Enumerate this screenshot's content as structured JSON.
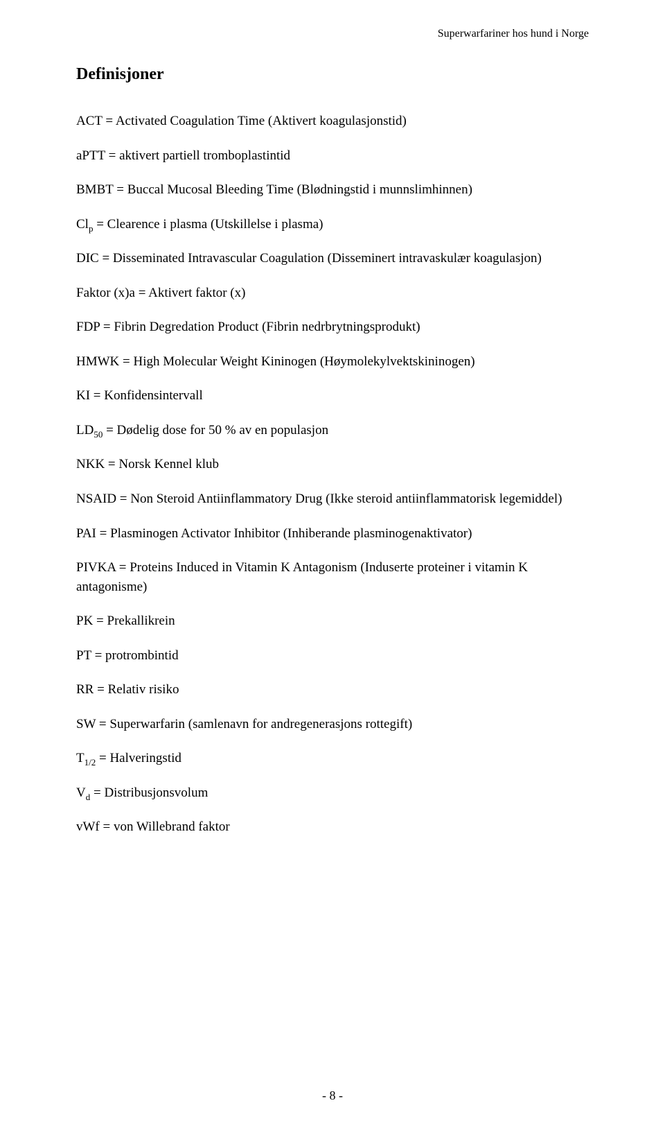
{
  "header": {
    "running": "Superwarfariner hos hund i Norge"
  },
  "title": "Definisjoner",
  "defs": {
    "d1": "ACT = Activated Coagulation Time (Aktivert koagulasjonstid)",
    "d2": "aPTT = aktivert partiell tromboplastintid",
    "d3": "BMBT = Buccal Mucosal Bleeding Time (Blødningstid i munnslimhinnen)",
    "d4_a": "Cl",
    "d4_sub": "p",
    "d4_b": " = Clearence i plasma (Utskillelse i plasma)",
    "d5": "DIC = Disseminated Intravascular Coagulation (Disseminert intravaskulær koagulasjon)",
    "d6": "Faktor (x)a = Aktivert faktor (x)",
    "d7": "FDP = Fibrin Degredation Product (Fibrin nedrbrytningsprodukt)",
    "d8": "HMWK = High Molecular Weight Kininogen (Høymolekylvektskininogen)",
    "d9": "KI = Konfidensintervall",
    "d10_a": "LD",
    "d10_sub": "50",
    "d10_b": " = Dødelig dose for 50 % av en populasjon",
    "d11": "NKK = Norsk Kennel klub",
    "d12": "NSAID = Non Steroid Antiinflammatory Drug (Ikke steroid antiinflammatorisk legemiddel)",
    "d13": "PAI = Plasminogen Activator Inhibitor (Inhiberande plasminogenaktivator)",
    "d14": "PIVKA = Proteins Induced in Vitamin K Antagonism (Induserte proteiner i vitamin K antagonisme)",
    "d15": "PK = Prekallikrein",
    "d16": "PT = protrombintid",
    "d17": "RR = Relativ risiko",
    "d18": "SW = Superwarfarin (samlenavn for andregenerasjons rottegift)",
    "d19_a": "T",
    "d19_sub": "1/2",
    "d19_b": " = Halveringstid",
    "d20_a": "V",
    "d20_sub": "d",
    "d20_b": " = Distribusjonsvolum",
    "d21": "vWf = von Willebrand faktor"
  },
  "footer": {
    "page_number": "- 8 -"
  }
}
